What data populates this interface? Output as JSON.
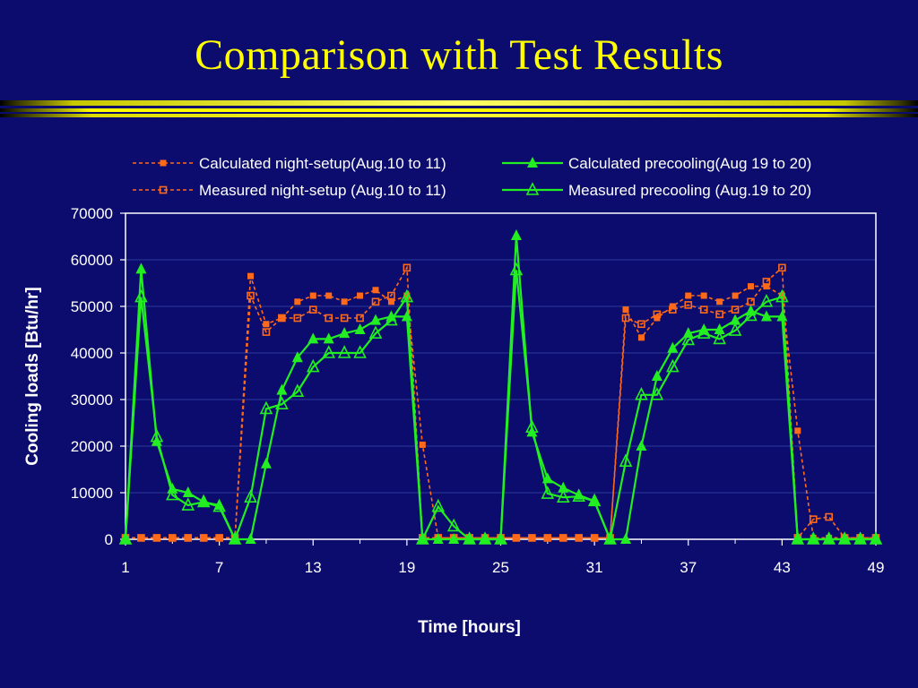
{
  "slide": {
    "title": "Comparison with Test Results"
  },
  "colors": {
    "background": "#0c0c6e",
    "title": "#ffff00",
    "night_setup": "#ff6a1a",
    "precooling": "#22ee22",
    "plot_frame": "#ffffff",
    "gridline": "#2a3a9a"
  },
  "chart_data": {
    "type": "line",
    "title": "",
    "xlabel": "Time [hours]",
    "ylabel": "Cooling loads [Btu/hr]",
    "xlim": [
      1,
      49
    ],
    "ylim": [
      0,
      70000
    ],
    "x_ticks": [
      "1",
      "7",
      "13",
      "19",
      "25",
      "31",
      "37",
      "43",
      "49"
    ],
    "y_ticks": [
      "0",
      "10000",
      "20000",
      "30000",
      "40000",
      "50000",
      "60000",
      "70000"
    ],
    "grid": "horizontal",
    "legend_position": "top",
    "series": [
      {
        "name": "Calculated night-setup(Aug.10 to 11)",
        "color": "#ff6a1a",
        "line": "dotted",
        "marker": "filled-square",
        "x": [
          1,
          2,
          3,
          4,
          5,
          6,
          7,
          8,
          9,
          10,
          11,
          12,
          13,
          14,
          15,
          16,
          17,
          18,
          19,
          20,
          21,
          22,
          23,
          24,
          25,
          26,
          27,
          28,
          29,
          30,
          31,
          32,
          33,
          34,
          35,
          36,
          37,
          38,
          39,
          40,
          41,
          42,
          43,
          44,
          45,
          46,
          47,
          48,
          49
        ],
        "values": [
          300,
          300,
          300,
          300,
          300,
          300,
          300,
          300,
          56500,
          46200,
          47500,
          51000,
          52300,
          52300,
          51000,
          52300,
          53500,
          51000,
          52300,
          20300,
          300,
          300,
          300,
          300,
          300,
          300,
          300,
          300,
          300,
          300,
          300,
          300,
          49300,
          43300,
          47500,
          50000,
          52300,
          52300,
          51000,
          52300,
          54300,
          54300,
          52300,
          23300,
          300,
          300,
          300,
          300,
          300
        ]
      },
      {
        "name": "Measured night-setup (Aug.10 to 11)",
        "color": "#ff6a1a",
        "line": "dotted",
        "marker": "hollow-square",
        "x": [
          1,
          2,
          3,
          4,
          5,
          6,
          7,
          8,
          9,
          10,
          11,
          12,
          13,
          14,
          15,
          16,
          17,
          18,
          19,
          20,
          21,
          22,
          23,
          24,
          25,
          26,
          27,
          28,
          29,
          30,
          31,
          32,
          33,
          34,
          35,
          36,
          37,
          38,
          39,
          40,
          41,
          42,
          43,
          44,
          45,
          46,
          47,
          48,
          49
        ],
        "values": [
          300,
          300,
          300,
          300,
          300,
          300,
          300,
          300,
          52300,
          44500,
          47500,
          47500,
          49300,
          47500,
          47500,
          47500,
          51000,
          52300,
          58300,
          300,
          300,
          300,
          300,
          300,
          300,
          300,
          300,
          300,
          300,
          300,
          300,
          300,
          47500,
          46200,
          48300,
          49300,
          50300,
          49300,
          48300,
          49300,
          51000,
          55300,
          58300,
          300,
          4300,
          4800,
          300,
          300,
          300
        ]
      },
      {
        "name": "Calculated precooling(Aug 19 to 20)",
        "color": "#22ee22",
        "line": "solid",
        "marker": "filled-triangle",
        "x": [
          1,
          2,
          3,
          4,
          5,
          6,
          7,
          8,
          9,
          10,
          11,
          12,
          13,
          14,
          15,
          16,
          17,
          18,
          19,
          20,
          21,
          22,
          23,
          24,
          25,
          26,
          27,
          28,
          29,
          30,
          31,
          32,
          33,
          34,
          35,
          36,
          37,
          38,
          39,
          40,
          41,
          42,
          43,
          44,
          45,
          46,
          47,
          48,
          49
        ],
        "values": [
          0,
          58000,
          21000,
          10800,
          10000,
          8000,
          7300,
          0,
          0,
          16200,
          32000,
          39000,
          43000,
          43000,
          44200,
          45000,
          47000,
          47800,
          47800,
          0,
          0,
          0,
          0,
          0,
          0,
          65200,
          23000,
          13000,
          11000,
          9500,
          8200,
          0,
          0,
          20000,
          35000,
          41000,
          44200,
          45000,
          45000,
          47000,
          49000,
          47800,
          47800,
          0,
          0,
          0,
          0,
          0,
          0
        ]
      },
      {
        "name": "Measured precooling (Aug.19 to 20)",
        "color": "#22ee22",
        "line": "solid",
        "marker": "hollow-triangle",
        "x": [
          1,
          2,
          3,
          4,
          5,
          6,
          7,
          8,
          9,
          10,
          11,
          12,
          13,
          14,
          15,
          16,
          17,
          18,
          19,
          20,
          21,
          22,
          23,
          24,
          25,
          26,
          27,
          28,
          29,
          30,
          31,
          32,
          33,
          34,
          35,
          36,
          37,
          38,
          39,
          40,
          41,
          42,
          43,
          44,
          45,
          46,
          47,
          48,
          49
        ],
        "values": [
          0,
          52000,
          22000,
          9500,
          7300,
          8000,
          7000,
          0,
          9000,
          28000,
          29000,
          31700,
          37000,
          40000,
          40000,
          40000,
          44200,
          47000,
          52000,
          0,
          7000,
          2800,
          0,
          0,
          0,
          57800,
          24000,
          9800,
          9000,
          9200,
          8200,
          0,
          16700,
          31000,
          31000,
          37000,
          42800,
          44200,
          43000,
          44800,
          48000,
          51000,
          52000,
          0,
          0,
          0,
          0,
          0,
          0
        ]
      }
    ]
  }
}
